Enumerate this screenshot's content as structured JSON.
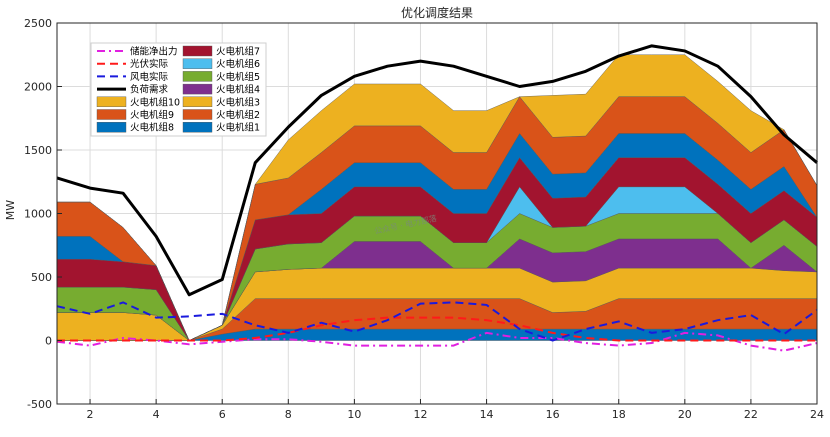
{
  "chart_data": {
    "type": "area",
    "title": "优化调度结果",
    "ylabel": "MW",
    "xlabel": "",
    "xlim": [
      1,
      24
    ],
    "ylim": [
      -500,
      2500
    ],
    "x_ticks": [
      2,
      4,
      6,
      8,
      10,
      12,
      14,
      16,
      18,
      20,
      22,
      24
    ],
    "y_ticks": [
      -500,
      0,
      500,
      1000,
      1500,
      2000,
      2500
    ],
    "x": [
      1,
      2,
      3,
      4,
      5,
      6,
      7,
      8,
      9,
      10,
      11,
      12,
      13,
      14,
      15,
      16,
      17,
      18,
      19,
      20,
      21,
      22,
      23,
      24
    ],
    "stacked_series": [
      {
        "name": "火电机组1",
        "color": "#0072BD",
        "values": [
          0,
          0,
          0,
          0,
          0,
          50,
          90,
          90,
          90,
          90,
          90,
          90,
          90,
          90,
          90,
          90,
          90,
          90,
          90,
          90,
          90,
          90,
          90,
          90
        ]
      },
      {
        "name": "火电机组2",
        "color": "#D95319",
        "values": [
          0,
          0,
          0,
          0,
          0,
          40,
          240,
          240,
          240,
          240,
          240,
          240,
          240,
          240,
          240,
          130,
          140,
          240,
          240,
          240,
          240,
          240,
          240,
          240
        ]
      },
      {
        "name": "火电机组3",
        "color": "#EDB120",
        "values": [
          220,
          220,
          220,
          200,
          0,
          30,
          210,
          230,
          240,
          240,
          240,
          240,
          240,
          240,
          240,
          240,
          240,
          240,
          240,
          240,
          240,
          240,
          220,
          210
        ]
      },
      {
        "name": "火电机组4",
        "color": "#7E2F8E",
        "values": [
          0,
          0,
          0,
          0,
          0,
          0,
          0,
          0,
          0,
          210,
          210,
          210,
          0,
          0,
          230,
          230,
          230,
          230,
          230,
          230,
          230,
          0,
          200,
          0
        ]
      },
      {
        "name": "火电机组5",
        "color": "#77AC30",
        "values": [
          200,
          200,
          200,
          200,
          0,
          0,
          180,
          200,
          200,
          200,
          200,
          200,
          200,
          200,
          200,
          200,
          200,
          200,
          200,
          200,
          200,
          200,
          200,
          200
        ]
      },
      {
        "name": "火电机组6",
        "color": "#4DBEEE",
        "values": [
          0,
          0,
          0,
          0,
          0,
          0,
          0,
          0,
          0,
          0,
          0,
          0,
          0,
          0,
          210,
          0,
          0,
          210,
          210,
          210,
          0,
          0,
          0,
          0
        ]
      },
      {
        "name": "火电机组7",
        "color": "#A2142F",
        "values": [
          220,
          220,
          200,
          190,
          0,
          0,
          230,
          230,
          230,
          230,
          230,
          230,
          230,
          230,
          230,
          230,
          230,
          230,
          230,
          230,
          230,
          230,
          230,
          230
        ]
      },
      {
        "name": "火电机组8",
        "color": "#0072BD",
        "values": [
          180,
          180,
          0,
          0,
          0,
          0,
          0,
          0,
          190,
          190,
          190,
          190,
          190,
          190,
          190,
          190,
          190,
          190,
          190,
          190,
          190,
          190,
          190,
          0
        ]
      },
      {
        "name": "火电机组9",
        "color": "#D95319",
        "values": [
          270,
          270,
          270,
          0,
          0,
          0,
          280,
          290,
          290,
          290,
          290,
          290,
          290,
          290,
          290,
          290,
          290,
          290,
          290,
          290,
          290,
          290,
          290,
          250
        ]
      },
      {
        "name": "火电机组10",
        "color": "#EDB120",
        "values": [
          0,
          0,
          0,
          0,
          0,
          0,
          0,
          300,
          330,
          330,
          330,
          330,
          330,
          330,
          0,
          330,
          330,
          330,
          330,
          330,
          330,
          330,
          0,
          0
        ]
      }
    ],
    "line_series": [
      {
        "name": "储能净出力",
        "color": "#E020E0",
        "style": "dashdot",
        "values": [
          -10,
          -40,
          20,
          0,
          -30,
          -10,
          10,
          10,
          -10,
          -40,
          -40,
          -40,
          -40,
          60,
          20,
          20,
          -20,
          -40,
          -20,
          60,
          40,
          -40,
          -80,
          -20
        ]
      },
      {
        "name": "光伏实际",
        "color": "#FF1A1A",
        "style": "dashed",
        "values": [
          0,
          0,
          0,
          0,
          0,
          0,
          20,
          60,
          120,
          160,
          180,
          180,
          180,
          160,
          120,
          60,
          20,
          0,
          0,
          0,
          0,
          0,
          0,
          0
        ]
      },
      {
        "name": "风电实际",
        "color": "#1A1ADD",
        "style": "dashed",
        "values": [
          270,
          210,
          300,
          180,
          190,
          210,
          120,
          60,
          140,
          70,
          160,
          290,
          300,
          280,
          90,
          0,
          90,
          150,
          60,
          90,
          160,
          200,
          50,
          240
        ]
      },
      {
        "name": "负荷需求",
        "color": "#000000",
        "style": "solid",
        "values": [
          1280,
          1200,
          1160,
          820,
          360,
          480,
          1400,
          1680,
          1930,
          2080,
          2160,
          2200,
          2160,
          2080,
          2000,
          2040,
          2120,
          2240,
          2320,
          2280,
          2160,
          1920,
          1620,
          1400
        ]
      }
    ],
    "legend": {
      "position": "top-left",
      "left_column": [
        "储能净出力",
        "光伏实际",
        "风电实际",
        "负荷需求",
        "火电机组10",
        "火电机组9",
        "火电机组8"
      ],
      "right_column": [
        "火电机组7",
        "火电机组6",
        "火电机组5",
        "火电机组4",
        "火电机组3",
        "火电机组2",
        "火电机组1"
      ]
    },
    "grid": true,
    "watermark": "公众号 · 电力部落"
  }
}
